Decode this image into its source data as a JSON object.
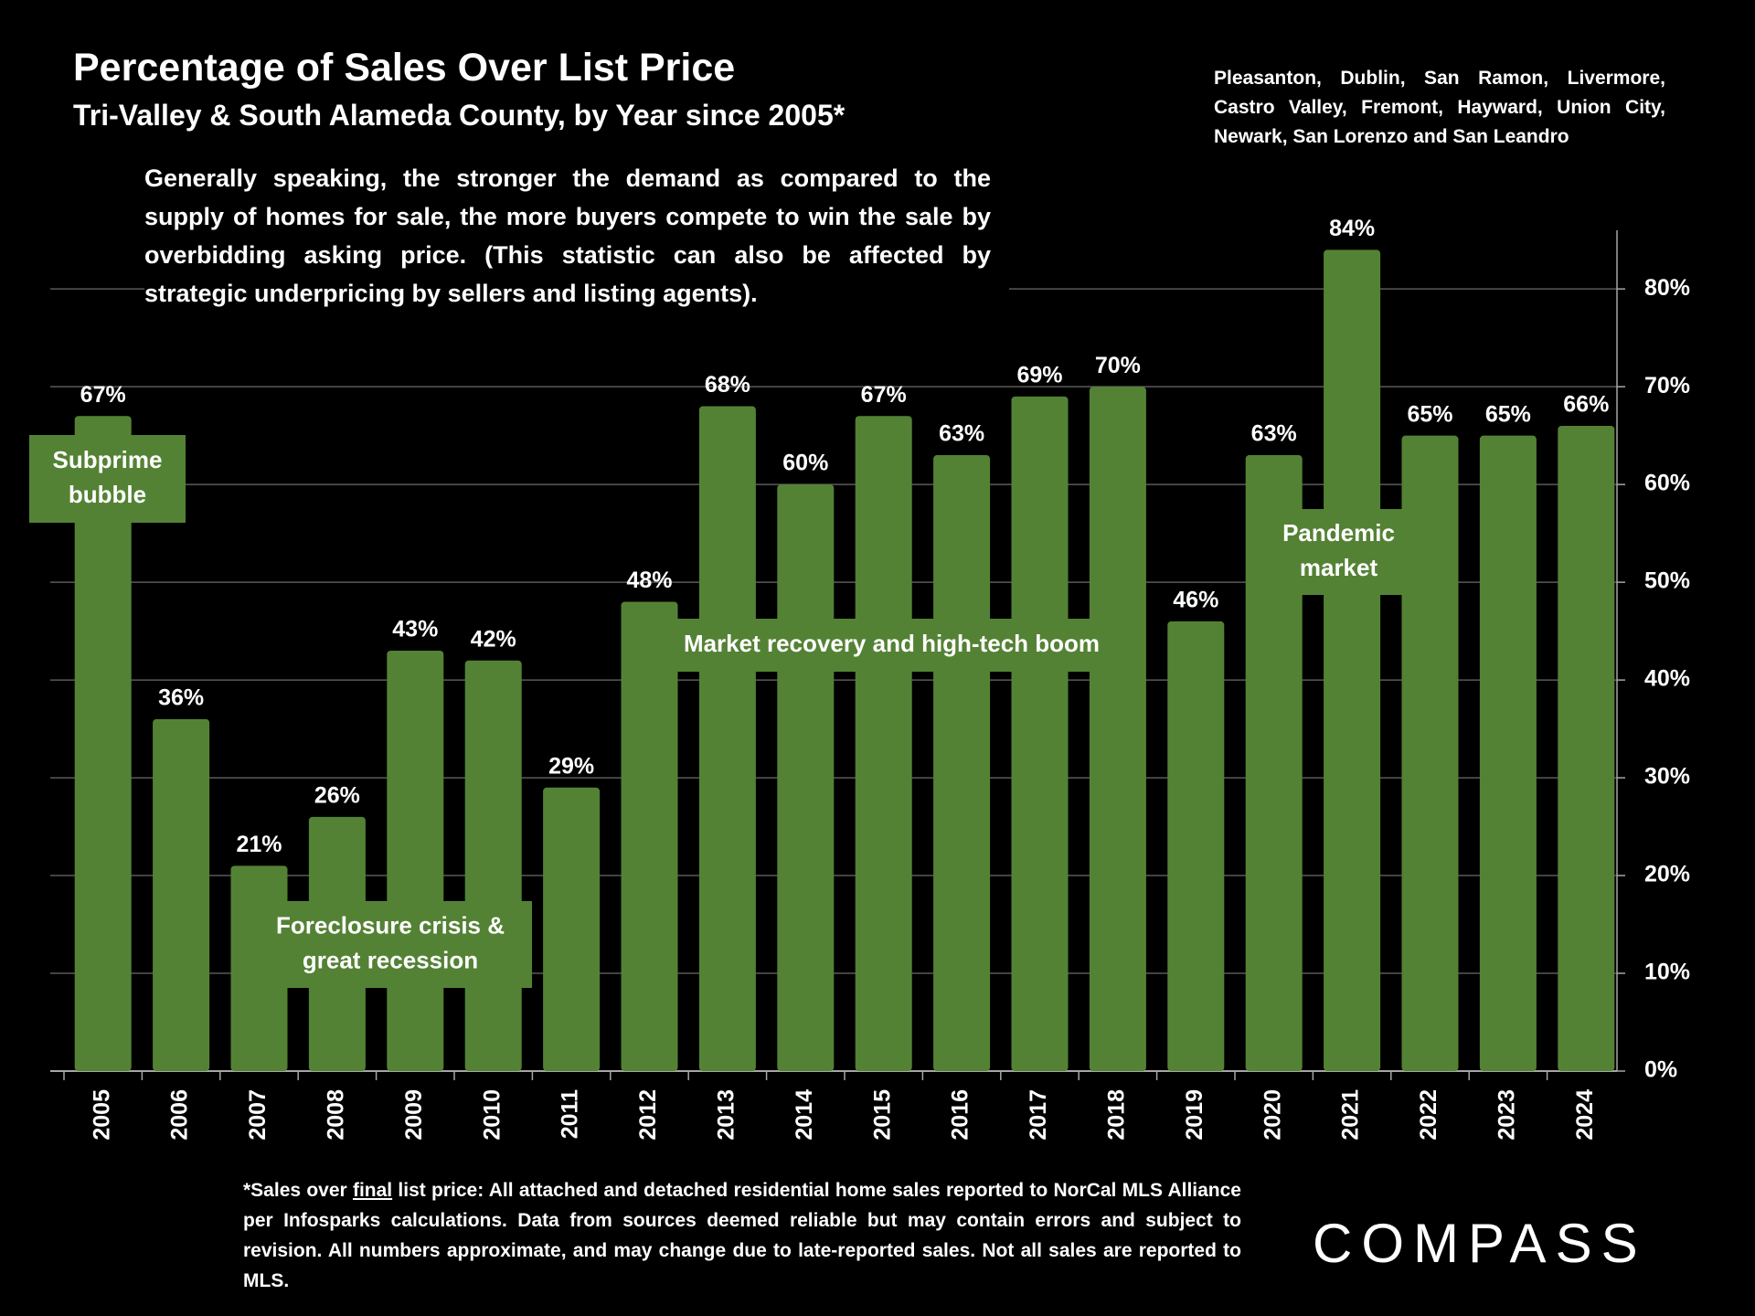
{
  "chart_data": {
    "type": "bar",
    "title": "Percentage of Sales Over List Price",
    "subtitle": "Tri-Valley & South Alameda County, by Year since 2005*",
    "description": "Generally speaking, the stronger the demand as compared to the supply of homes for sale, the more buyers compete to win the sale by overbidding asking price. (This statistic can also be affected by strategic underpricing by sellers and listing agents).",
    "region_note": "Pleasanton, Dublin, San Ramon, Livermore, Castro Valley, Fremont, Hayward, Union City, Newark, San Lorenzo and San Leandro",
    "categories": [
      "2005",
      "2006",
      "2007",
      "2008",
      "2009",
      "2010",
      "2011",
      "2012",
      "2013",
      "2014",
      "2015",
      "2016",
      "2017",
      "2018",
      "2019",
      "2020",
      "2021",
      "2022",
      "2023",
      "2024"
    ],
    "values": [
      67,
      36,
      21,
      26,
      43,
      42,
      29,
      48,
      68,
      60,
      67,
      63,
      69,
      70,
      46,
      63,
      84,
      65,
      65,
      66
    ],
    "value_labels": [
      "67%",
      "36%",
      "21%",
      "26%",
      "43%",
      "42%",
      "29%",
      "48%",
      "68%",
      "60%",
      "67%",
      "63%",
      "69%",
      "70%",
      "46%",
      "63%",
      "84%",
      "65%",
      "65%",
      "66%"
    ],
    "color": "#548235",
    "ylim": [
      0,
      86
    ],
    "yticks": [
      {
        "value": 0,
        "label": "0%"
      },
      {
        "value": 10,
        "label": "10%"
      },
      {
        "value": 20,
        "label": "20%"
      },
      {
        "value": 30,
        "label": "30%"
      },
      {
        "value": 40,
        "label": "40%"
      },
      {
        "value": 50,
        "label": "50%"
      },
      {
        "value": 60,
        "label": "60%"
      },
      {
        "value": 70,
        "label": "70%"
      },
      {
        "value": 80,
        "label": "80%"
      }
    ],
    "grid": true,
    "annotations": [
      {
        "lines": [
          "Subprime",
          "bubble"
        ]
      },
      {
        "lines": [
          "Foreclosure crisis &",
          "great recession"
        ]
      },
      {
        "lines": [
          "Market recovery and high-tech boom"
        ]
      },
      {
        "lines": [
          "Pandemic",
          "market"
        ]
      }
    ],
    "footnote": [
      "*Sales over ",
      "final",
      " list price: All attached and detached residential home sales reported to NorCal MLS Alliance per Infosparks calculations. Data from sources deemed reliable but may contain errors and subject to revision. All numbers approximate, and may change due to late-reported sales. Not all sales are reported to MLS."
    ],
    "logo": "COMPASS"
  }
}
